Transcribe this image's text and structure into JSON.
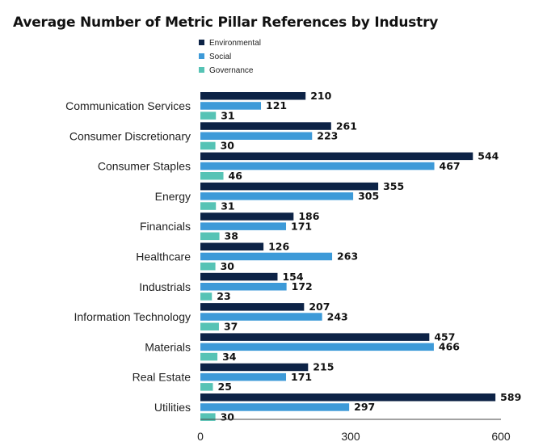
{
  "title": "Average Number of Metric Pillar References by Industry",
  "colors": {
    "Environmental": "#0d2346",
    "Social": "#3d9ad8",
    "Governance": "#56c3b5"
  },
  "chart_data": {
    "type": "bar",
    "orientation": "horizontal",
    "title": "Average Number of Metric Pillar References by Industry",
    "xlabel": "",
    "ylabel": "",
    "xlim": [
      0,
      600
    ],
    "xticks": [
      0,
      300,
      600
    ],
    "grid": false,
    "legend": "top-left",
    "categories": [
      "Communication Services",
      "Consumer Discretionary",
      "Consumer Staples",
      "Energy",
      "Financials",
      "Healthcare",
      "Industrials",
      "Information Technology",
      "Materials",
      "Real Estate",
      "Utilities"
    ],
    "series": [
      {
        "name": "Environmental",
        "values": [
          210,
          261,
          544,
          355,
          186,
          126,
          154,
          207,
          457,
          215,
          589
        ]
      },
      {
        "name": "Social",
        "values": [
          121,
          223,
          467,
          305,
          171,
          263,
          172,
          243,
          466,
          171,
          297
        ]
      },
      {
        "name": "Governance",
        "values": [
          31,
          30,
          46,
          31,
          38,
          30,
          23,
          37,
          34,
          25,
          30
        ]
      }
    ]
  }
}
